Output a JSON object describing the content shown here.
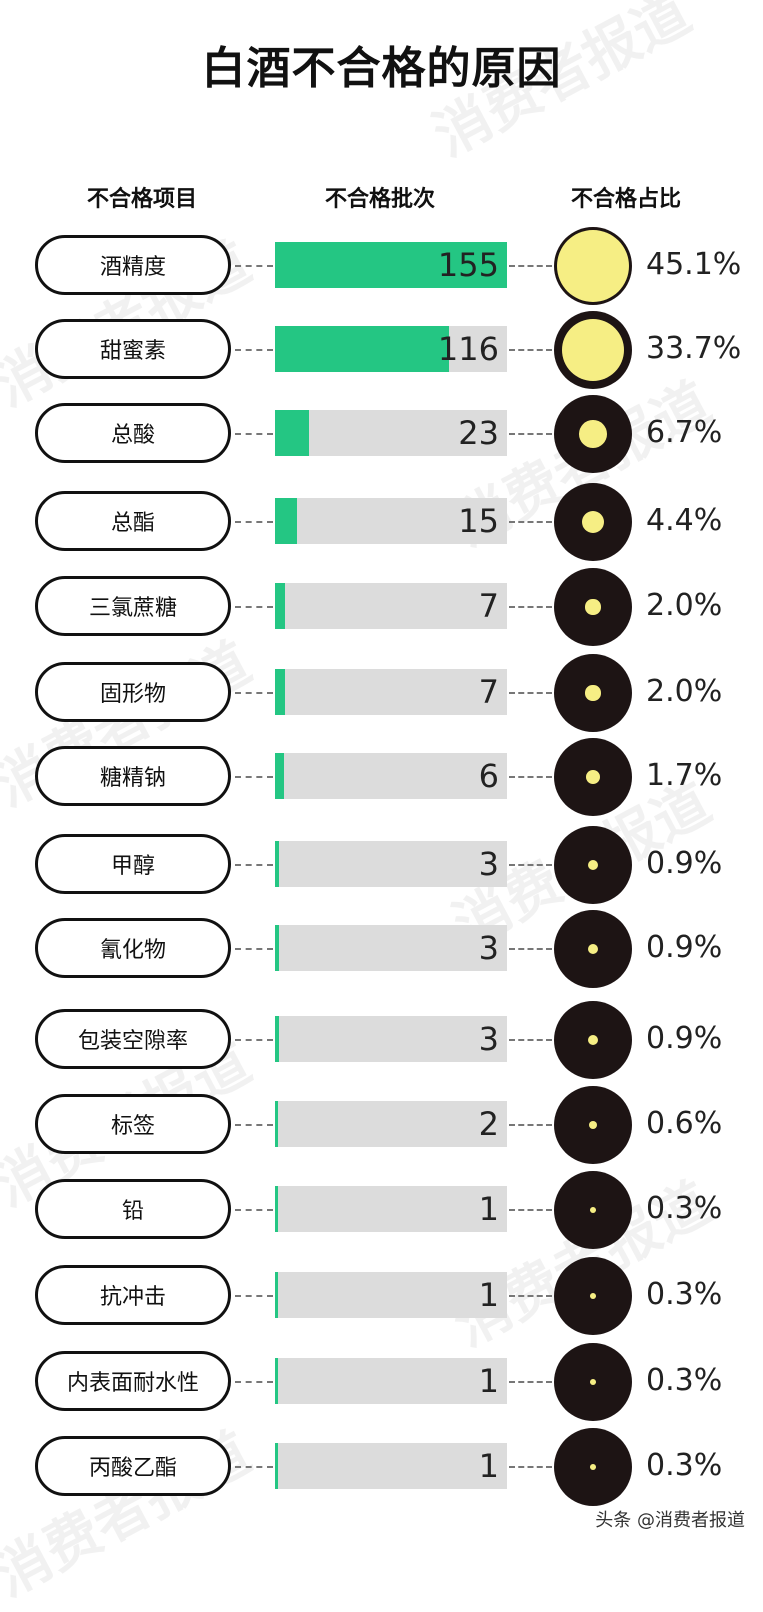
{
  "title": "白酒不合格的原因",
  "headers": {
    "item": "不合格项目",
    "batch": "不合格批次",
    "ratio": "不合格占比"
  },
  "watermark": "消费者报道",
  "footer": "头条 @消费者报道",
  "colors": {
    "bar": "#24c683",
    "bar_bg": "#dcdcdc",
    "dot": "#f6ee84",
    "circle": "#1d1414"
  },
  "chart_data": {
    "type": "bar",
    "categories": [
      "酒精度",
      "甜蜜素",
      "总酸",
      "总酯",
      "三氯蔗糖",
      "固形物",
      "糖精钠",
      "甲醇",
      "氰化物",
      "包装空隙率",
      "标签",
      "铅",
      "抗冲击",
      "内表面耐水性",
      "丙酸乙酯"
    ],
    "series": [
      {
        "values": [
          155,
          116,
          23,
          15,
          7,
          7,
          6,
          3,
          3,
          3,
          2,
          1,
          1,
          1,
          1
        ]
      },
      {
        "values": [
          45.1,
          33.7,
          6.7,
          4.4,
          2.0,
          2.0,
          1.7,
          0.9,
          0.9,
          0.9,
          0.6,
          0.3,
          0.3,
          0.3,
          0.3
        ]
      }
    ],
    "value_labels": [
      "155",
      "116",
      "23",
      "15",
      "7",
      "7",
      "6",
      "3",
      "3",
      "3",
      "2",
      "1",
      "1",
      "1",
      "1"
    ],
    "ratio_labels": [
      "45.1%",
      "33.7%",
      "6.7%",
      "4.4%",
      "2.0%",
      "2.0%",
      "1.7%",
      "0.9%",
      "0.9%",
      "0.9%",
      "0.6%",
      "0.3%",
      "0.3%",
      "0.3%",
      "0.3%"
    ],
    "xlim": [
      0,
      155
    ]
  }
}
